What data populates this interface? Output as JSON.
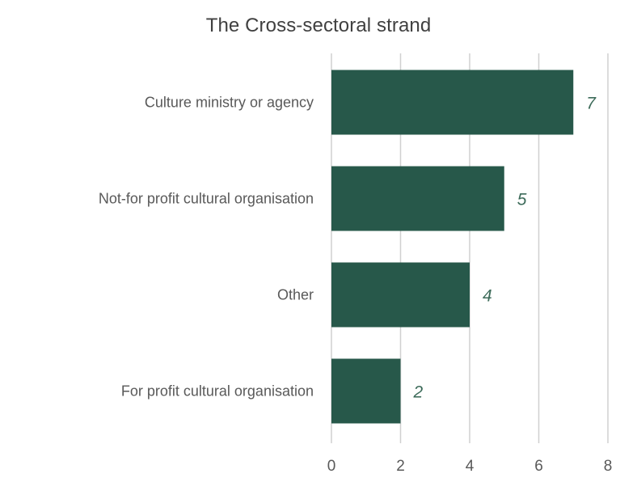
{
  "chart_data": {
    "type": "bar",
    "orientation": "horizontal",
    "title": "The Cross-sectoral strand",
    "categories": [
      "Culture ministry or agency",
      "Not-for profit cultural organisation",
      "Other",
      "For profit cultural organisation"
    ],
    "values": [
      7,
      5,
      4,
      2
    ],
    "data_labels": [
      "7",
      "5",
      "4",
      "2"
    ],
    "xlabel": "",
    "ylabel": "",
    "xlim": [
      0,
      8
    ],
    "xticks": [
      0,
      2,
      4,
      6,
      8
    ],
    "xtick_labels": [
      "0",
      "2",
      "4",
      "6",
      "8"
    ],
    "grid": "vertical",
    "legend": "none",
    "colors": {
      "bar": "#27584a",
      "grid": "#d0d0d0",
      "data_label": "#3d6b5a",
      "text": "#595959",
      "title": "#404040"
    }
  }
}
